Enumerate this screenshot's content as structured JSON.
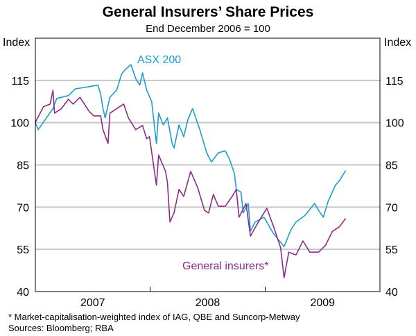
{
  "chart_data": {
    "type": "line",
    "title": "General Insurers’ Share Prices",
    "subtitle": "End December 2006 = 100",
    "ylabel_left": "Index",
    "ylabel_right": "Index",
    "ylim": [
      40,
      130
    ],
    "yticks": [
      40,
      55,
      70,
      85,
      100,
      115
    ],
    "xlim": [
      "2007-01-01",
      "2010-01-01"
    ],
    "xtick_labels": [
      "2007",
      "2008",
      "2009"
    ],
    "grid": true,
    "series": [
      {
        "name": "ASX 200",
        "color": "#1a9dcc",
        "x": [
          "2007-01-01",
          "2007-01-10",
          "2007-02-26",
          "2007-03-10",
          "2007-04-16",
          "2007-05-08",
          "2007-06-21",
          "2007-07-19",
          "2007-07-28",
          "2007-08-04",
          "2007-08-11",
          "2007-08-26",
          "2007-09-17",
          "2007-10-02",
          "2007-10-15",
          "2007-11-01",
          "2007-11-16",
          "2007-11-29",
          "2007-12-08",
          "2007-12-21",
          "2008-01-06",
          "2008-01-21",
          "2008-01-28",
          "2008-02-12",
          "2008-02-25",
          "2008-03-11",
          "2008-03-17",
          "2008-04-02",
          "2008-04-17",
          "2008-04-30",
          "2008-05-15",
          "2008-06-07",
          "2008-06-29",
          "2008-07-14",
          "2008-08-05",
          "2008-08-27",
          "2008-09-10",
          "2008-09-25",
          "2008-10-01",
          "2008-10-16",
          "2008-10-23",
          "2008-11-08",
          "2008-11-15",
          "2008-11-30",
          "2008-12-28",
          "2009-01-06",
          "2009-01-28",
          "2009-03-02",
          "2009-03-24",
          "2009-04-09",
          "2009-05-07",
          "2009-06-07",
          "2009-06-20",
          "2009-07-05",
          "2009-07-20",
          "2009-08-12",
          "2009-08-25",
          "2009-09-14"
        ],
        "y": [
          100,
          97.5,
          105,
          108.6,
          109.6,
          112,
          112.8,
          113.3,
          110,
          105,
          101.7,
          109,
          111.6,
          117.2,
          119,
          120.6,
          115.7,
          113.3,
          117.7,
          111.6,
          107.4,
          92.6,
          103.4,
          99.2,
          101.7,
          92.6,
          91,
          99.2,
          95,
          101,
          105,
          97.5,
          89.3,
          86,
          89.3,
          90,
          86.9,
          82,
          76.3,
          75.3,
          67.9,
          71.3,
          61.5,
          64.7,
          66.4,
          64.7,
          60.5,
          56,
          62,
          64.7,
          67,
          71.3,
          68.8,
          66.4,
          72,
          77.7,
          79.4,
          83
        ]
      },
      {
        "name": "General insurers*",
        "color": "#8c2a8c",
        "x": [
          "2007-01-01",
          "2007-01-05",
          "2007-01-27",
          "2007-02-17",
          "2007-02-26",
          "2007-03-03",
          "2007-03-25",
          "2007-04-16",
          "2007-05-01",
          "2007-05-23",
          "2007-06-21",
          "2007-07-06",
          "2007-07-28",
          "2007-08-04",
          "2007-08-20",
          "2007-08-26",
          "2007-09-17",
          "2007-10-09",
          "2007-10-24",
          "2007-11-16",
          "2007-12-08",
          "2007-12-21",
          "2007-12-30",
          "2008-01-21",
          "2008-01-28",
          "2008-02-19",
          "2008-02-25",
          "2008-03-04",
          "2008-03-17",
          "2008-04-02",
          "2008-04-17",
          "2008-05-09",
          "2008-05-31",
          "2008-06-22",
          "2008-07-05",
          "2008-07-20",
          "2008-08-05",
          "2008-08-27",
          "2008-09-18",
          "2008-10-01",
          "2008-10-10",
          "2008-11-01",
          "2008-11-15",
          "2008-12-06",
          "2009-01-06",
          "2009-01-28",
          "2009-02-19",
          "2009-03-02",
          "2009-03-17",
          "2009-04-09",
          "2009-05-01",
          "2009-05-23",
          "2009-06-20",
          "2009-07-12",
          "2009-08-03",
          "2009-08-25",
          "2009-09-14"
        ],
        "y": [
          100,
          101,
          105.7,
          106.6,
          111.5,
          103.4,
          105,
          108.3,
          106.6,
          109,
          104,
          102.4,
          102.4,
          97.5,
          92.6,
          103.4,
          105,
          106.6,
          101.7,
          97.5,
          99,
          94.3,
          95,
          77.8,
          88.5,
          82.7,
          78.7,
          64.7,
          67.9,
          76.3,
          73.8,
          82.7,
          77,
          68.8,
          67.9,
          74.5,
          70.3,
          70.3,
          73.8,
          76.3,
          66.4,
          71.3,
          59.7,
          63.9,
          69.6,
          63,
          55.6,
          44.9,
          54,
          53,
          58,
          54,
          54,
          56.5,
          61.4,
          63,
          66
        ]
      }
    ],
    "footnote": "*   Market-capitalisation-weighted index of IAG, QBE and Suncorp-Metway",
    "sources": "Sources: Bloomberg; RBA"
  }
}
